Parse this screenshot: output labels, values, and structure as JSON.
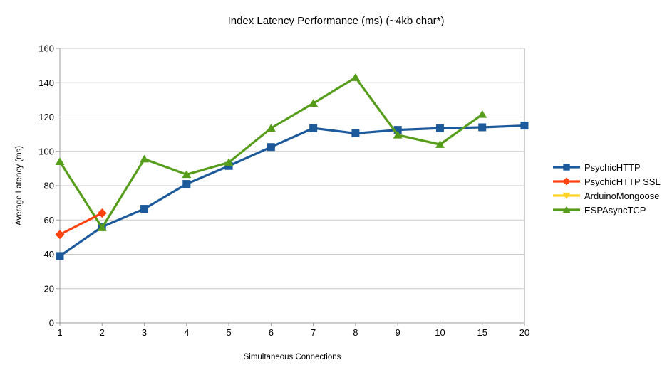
{
  "chart_data": {
    "type": "line",
    "title": "Index Latency Performance (ms) (~4kb char*)",
    "xlabel": "Simultaneous Connections",
    "ylabel": "Average Latency (ms)",
    "categories": [
      "1",
      "2",
      "3",
      "4",
      "5",
      "6",
      "7",
      "8",
      "9",
      "10",
      "15",
      "20"
    ],
    "ylim": [
      0,
      160
    ],
    "y_ticks": [
      0,
      20,
      40,
      60,
      80,
      100,
      120,
      140,
      160
    ],
    "grid": true,
    "legend_position": "right",
    "series": [
      {
        "name": "PsychicHTTP",
        "color": "#1C5A9C",
        "marker": "square",
        "values": [
          39,
          56,
          66.5,
          81,
          91.5,
          102.5,
          113.5,
          110.5,
          112.5,
          113.5,
          114,
          115
        ]
      },
      {
        "name": "PsychicHTTP SSL",
        "color": "#FF420E",
        "marker": "diamond",
        "values": [
          51.5,
          64,
          null,
          null,
          null,
          null,
          null,
          null,
          null,
          null,
          null,
          null
        ]
      },
      {
        "name": "ArduinoMongoose",
        "color": "#FFD320",
        "marker": "triangle-down",
        "values": [
          null,
          null,
          null,
          null,
          null,
          null,
          null,
          null,
          null,
          null,
          null,
          null
        ]
      },
      {
        "name": "ESPAsyncTCP",
        "color": "#579D1C",
        "marker": "triangle-up",
        "values": [
          94,
          55.5,
          95.5,
          86.5,
          93.5,
          113.5,
          128,
          143,
          109.5,
          104,
          121.5,
          null
        ]
      }
    ]
  }
}
